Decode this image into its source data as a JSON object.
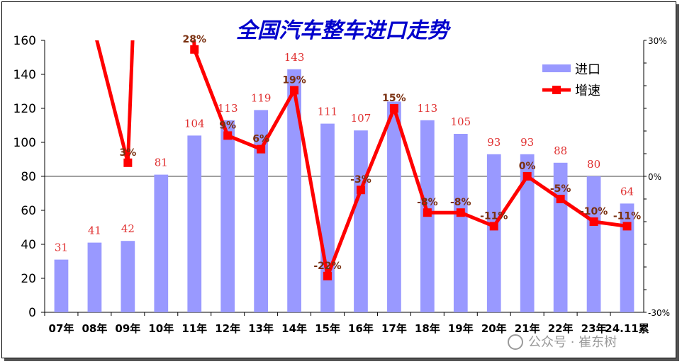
{
  "chart_data": {
    "type": "bar",
    "title": "全国汽车整车进口走势",
    "categories": [
      "07年",
      "08年",
      "09年",
      "10年",
      "11年",
      "12年",
      "13年",
      "14年",
      "15年",
      "16年",
      "17年",
      "18年",
      "19年",
      "20年",
      "21年",
      "22年",
      "23年",
      "24.11累"
    ],
    "series": [
      {
        "name": "进口",
        "type": "bar",
        "axis": "left",
        "values": [
          31,
          41,
          42,
          81,
          104,
          113,
          119,
          143,
          111,
          107,
          124,
          113,
          105,
          93,
          93,
          88,
          80,
          64
        ],
        "labels": [
          "31",
          "41",
          "42",
          "81",
          "104",
          "113",
          "119",
          "143",
          "111",
          "107",
          "",
          "113",
          "105",
          "93",
          "93",
          "88",
          "80",
          "64"
        ]
      },
      {
        "name": "增速",
        "type": "line",
        "axis": "right",
        "values": [
          null,
          32,
          3,
          null,
          28,
          9,
          6,
          19,
          -22,
          -3,
          15,
          -8,
          -8,
          -11,
          0,
          -5,
          -10,
          -11
        ],
        "labels": [
          "",
          "",
          "3%",
          "",
          "28%",
          "9%",
          "6%",
          "19%",
          "-22%",
          "-3%",
          "15%",
          "-8%",
          "-8%",
          "-11%",
          "0%",
          "-5%",
          "-10%",
          "-11%"
        ]
      }
    ],
    "y_left": {
      "min": 0,
      "max": 160,
      "ticks": [
        "0",
        "20",
        "40",
        "60",
        "80",
        "100",
        "120",
        "140",
        "160"
      ]
    },
    "y_right": {
      "min": -30,
      "max": 30,
      "ticks": [
        "30%",
        "0%",
        "-30%"
      ]
    },
    "legend": {
      "position": "top-right"
    },
    "grid": false,
    "colors": {
      "bar": "#9999ff",
      "line": "#ff0000",
      "marker": "#ff0000",
      "bar_label": "#e03030",
      "pct_label": "#7a3010",
      "title": "#0000cc"
    }
  },
  "watermark": "公众号 · 崔东树"
}
